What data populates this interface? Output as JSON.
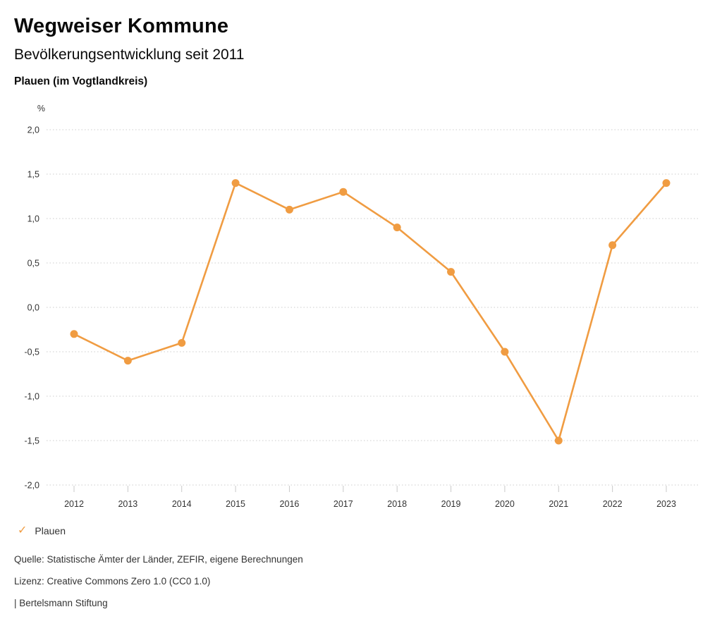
{
  "header": {
    "title": "Wegweiser Kommune",
    "subtitle": "Bevölkerungsentwicklung seit 2011",
    "region": "Plauen (im Vogtlandkreis)"
  },
  "chart_data": {
    "type": "line",
    "title": "Bevölkerungsentwicklung seit 2011",
    "subtitle": "Plauen (im Vogtlandkreis)",
    "unit_label": "%",
    "ylabel": "%",
    "xlabel": "",
    "categories": [
      "2012",
      "2013",
      "2014",
      "2015",
      "2016",
      "2017",
      "2018",
      "2019",
      "2020",
      "2021",
      "2022",
      "2023"
    ],
    "series": [
      {
        "name": "Plauen",
        "color": "#F09C42",
        "marker": "circle",
        "values": [
          -0.3,
          -0.6,
          -0.4,
          1.4,
          1.1,
          1.3,
          0.9,
          0.4,
          -0.5,
          -1.5,
          0.7,
          1.4
        ]
      }
    ],
    "ylim": [
      -2.0,
      2.0
    ],
    "y_tick_values": [
      2.0,
      1.5,
      1.0,
      0.5,
      0.0,
      -0.5,
      -1.0,
      -1.5,
      -2.0
    ],
    "y_tick_labels": [
      "2,0",
      "1,5",
      "1,0",
      "0,5",
      "0,0",
      "-0,5",
      "-1,0",
      "-1,5",
      "-2,0"
    ],
    "grid": "horizontal-dotted",
    "legend_position": "bottom-left"
  },
  "legend": {
    "items": [
      {
        "symbol": "check",
        "label": "Plauen",
        "color": "#F09C42"
      }
    ]
  },
  "footer": {
    "source": "Quelle: Statistische Ämter der Länder, ZEFIR, eigene Berechnungen",
    "license": "Lizenz: Creative Commons Zero 1.0 (CC0 1.0)",
    "attribution": "| Bertelsmann Stiftung"
  },
  "colors": {
    "series_orange": "#F09C42",
    "gridline": "#cccccc",
    "axis_text": "#333333",
    "background": "#ffffff"
  }
}
